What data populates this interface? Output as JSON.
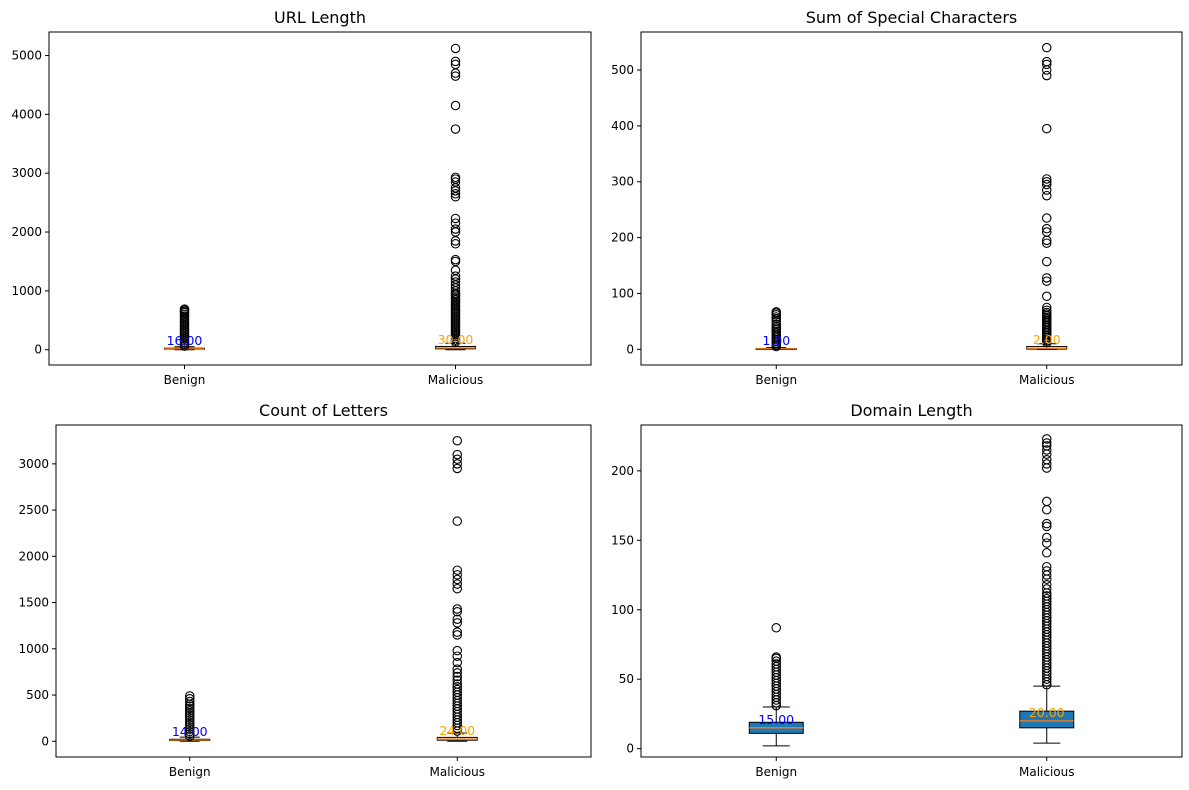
{
  "chart_data": [
    {
      "type": "box",
      "title": "URL Length",
      "xlabel": "",
      "ylabel": "",
      "categories": [
        "Benign",
        "Malicious"
      ],
      "yticks": [
        0,
        1000,
        2000,
        3000,
        4000,
        5000
      ],
      "ylim": [
        -260,
        5400
      ],
      "median_labels": [
        "16.00",
        "30.00"
      ],
      "median_label_colors": [
        "#0000ff",
        "#ffa500"
      ],
      "boxes": [
        {
          "category": "Benign",
          "whislo": 0,
          "q1": 10,
          "med": 16,
          "q3": 26,
          "whishi": 50,
          "filled": false,
          "fliers": [
            60,
            90,
            120,
            150,
            180,
            210,
            240,
            270,
            300,
            330,
            360,
            390,
            420,
            450,
            480,
            510,
            540,
            570,
            600,
            630,
            650,
            670,
            690
          ]
        },
        {
          "category": "Malicious",
          "whislo": 0,
          "q1": 15,
          "med": 30,
          "q3": 55,
          "whishi": 110,
          "filled": false,
          "fliers": [
            130,
            160,
            190,
            220,
            250,
            280,
            310,
            340,
            370,
            400,
            430,
            460,
            490,
            520,
            550,
            580,
            610,
            640,
            670,
            700,
            730,
            760,
            790,
            820,
            850,
            880,
            910,
            940,
            960,
            1000,
            1050,
            1100,
            1150,
            1200,
            1250,
            1350,
            1500,
            1530,
            1800,
            1850,
            2000,
            2050,
            2150,
            2230,
            2600,
            2650,
            2700,
            2750,
            2850,
            2900,
            2930,
            3750,
            4150,
            4650,
            4700,
            4850,
            4900,
            5120
          ]
        }
      ]
    },
    {
      "type": "box",
      "title": "Sum of Special Characters",
      "xlabel": "",
      "ylabel": "",
      "categories": [
        "Benign",
        "Malicious"
      ],
      "yticks": [
        0,
        100,
        200,
        300,
        400,
        500
      ],
      "ylim": [
        -28,
        568
      ],
      "median_labels": [
        "1.00",
        "2.00"
      ],
      "median_label_colors": [
        "#0000ff",
        "#ffa500"
      ],
      "boxes": [
        {
          "category": "Benign",
          "whislo": 0,
          "q1": 0,
          "med": 1,
          "q3": 1.5,
          "whishi": 3,
          "filled": false,
          "fliers": [
            5,
            8,
            11,
            14,
            17,
            20,
            23,
            26,
            29,
            32,
            35,
            38,
            41,
            45,
            50,
            55,
            58,
            62,
            65,
            67
          ]
        },
        {
          "category": "Malicious",
          "whislo": 0,
          "q1": 0.5,
          "med": 2,
          "q3": 5,
          "whishi": 10,
          "filled": false,
          "fliers": [
            12,
            15,
            18,
            21,
            24,
            27,
            30,
            33,
            36,
            39,
            42,
            45,
            48,
            51,
            54,
            57,
            60,
            63,
            66,
            70,
            75,
            95,
            122,
            128,
            157,
            190,
            195,
            210,
            216,
            235,
            275,
            285,
            295,
            300,
            305,
            395,
            490,
            500,
            510,
            515,
            540
          ]
        }
      ]
    },
    {
      "type": "box",
      "title": "Count of Letters",
      "xlabel": "",
      "ylabel": "",
      "categories": [
        "Benign",
        "Malicious"
      ],
      "yticks": [
        0,
        500,
        1000,
        1500,
        2000,
        2500,
        3000
      ],
      "ylim": [
        -170,
        3420
      ],
      "median_labels": [
        "14.00",
        "24.00"
      ],
      "median_label_colors": [
        "#0000ff",
        "#ffa500"
      ],
      "boxes": [
        {
          "category": "Benign",
          "whislo": 0,
          "q1": 8,
          "med": 14,
          "q3": 22,
          "whishi": 45,
          "filled": false,
          "fliers": [
            55,
            80,
            105,
            130,
            155,
            180,
            205,
            230,
            255,
            280,
            305,
            330,
            355,
            380,
            400,
            430,
            460,
            490
          ]
        },
        {
          "category": "Malicious",
          "whislo": 0,
          "q1": 12,
          "med": 24,
          "q3": 42,
          "whishi": 90,
          "filled": false,
          "fliers": [
            110,
            140,
            170,
            200,
            230,
            260,
            290,
            320,
            350,
            380,
            410,
            440,
            470,
            500,
            530,
            560,
            590,
            620,
            660,
            700,
            740,
            780,
            850,
            920,
            980,
            1150,
            1180,
            1280,
            1320,
            1400,
            1430,
            1650,
            1700,
            1750,
            1800,
            1850,
            2380,
            2950,
            3000,
            3050,
            3100,
            3250
          ]
        }
      ]
    },
    {
      "type": "box",
      "title": "Domain Length",
      "xlabel": "",
      "ylabel": "",
      "categories": [
        "Benign",
        "Malicious"
      ],
      "yticks": [
        0,
        50,
        100,
        150,
        200
      ],
      "ylim": [
        -6,
        233
      ],
      "median_labels": [
        "15.00",
        "20.00"
      ],
      "median_label_colors": [
        "#0000ff",
        "#ffa500"
      ],
      "boxes": [
        {
          "category": "Benign",
          "whislo": 2,
          "q1": 11,
          "med": 15,
          "q3": 19,
          "whishi": 30,
          "filled": true,
          "fliers": [
            31,
            33,
            35,
            37,
            39,
            41,
            43,
            45,
            47,
            49,
            51,
            53,
            55,
            57,
            59,
            61,
            63,
            65,
            66,
            87
          ]
        },
        {
          "category": "Malicious",
          "whislo": 4,
          "q1": 15,
          "med": 20,
          "q3": 27,
          "whishi": 45,
          "filled": true,
          "fliers": [
            46,
            48,
            50,
            52,
            54,
            56,
            58,
            60,
            62,
            64,
            66,
            68,
            70,
            72,
            74,
            76,
            78,
            80,
            82,
            84,
            86,
            88,
            90,
            92,
            94,
            96,
            98,
            100,
            102,
            104,
            106,
            108,
            110,
            112,
            115,
            118,
            122,
            125,
            128,
            131,
            141,
            148,
            152,
            160,
            162,
            172,
            178,
            202,
            205,
            208,
            212,
            215,
            218,
            220,
            223
          ]
        }
      ]
    }
  ]
}
